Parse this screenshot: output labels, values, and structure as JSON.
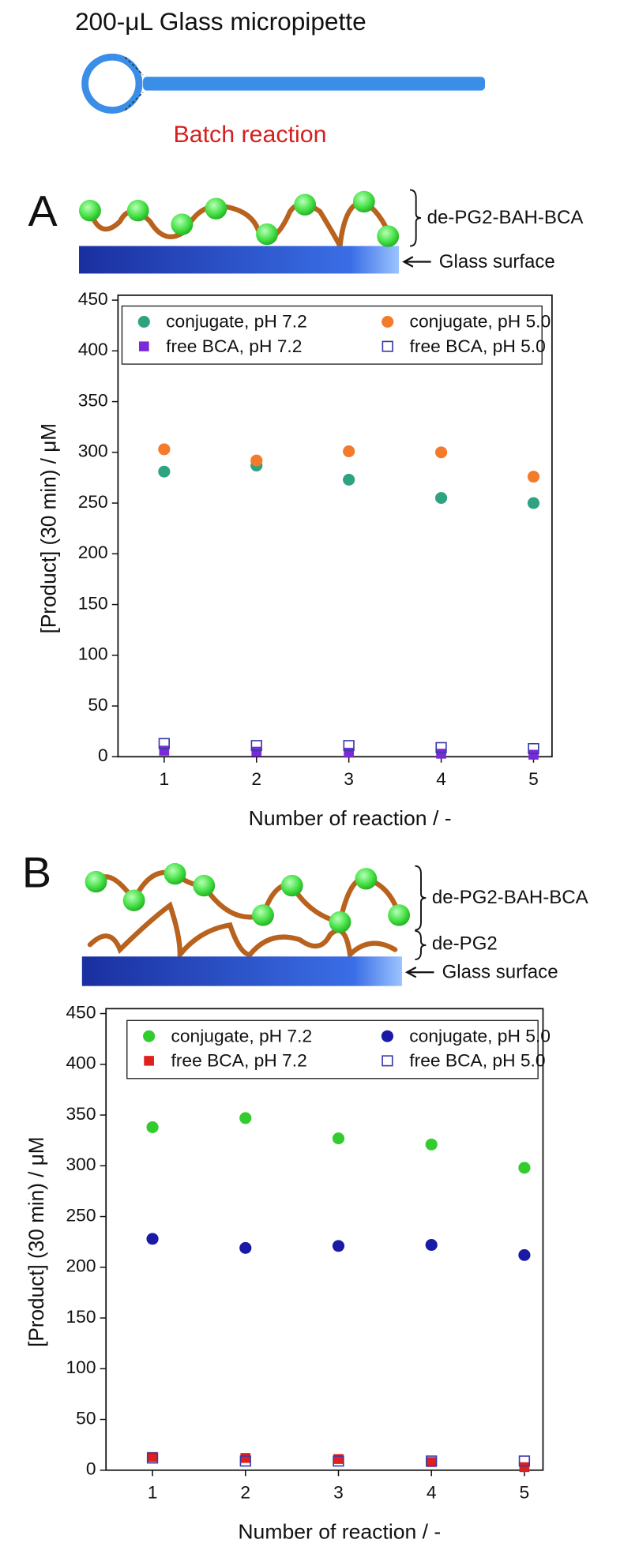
{
  "diagram": {
    "title": "200-μL Glass micropipette",
    "caption": "Batch reaction",
    "panels": [
      {
        "label": "A",
        "layers": [
          "de-PG2-BAH-BCA"
        ],
        "surface": "Glass surface"
      },
      {
        "label": "B",
        "layers": [
          "de-PG2-BAH-BCA",
          "de-PG2"
        ],
        "surface": "Glass surface"
      }
    ]
  },
  "chart_data": [
    {
      "type": "scatter",
      "x_label": "Number of reaction / -",
      "y_label": "[Product] (30 min) / μM",
      "xlim": [
        0.5,
        5.2
      ],
      "xticks": [
        1,
        2,
        3,
        4,
        5
      ],
      "ylim": [
        0,
        450
      ],
      "yticks": [
        0,
        50,
        100,
        150,
        200,
        250,
        300,
        350,
        400,
        450
      ],
      "legend": "top",
      "series": [
        {
          "name": "conjugate, pH 7.2",
          "color": "#2fa282",
          "marker": "circle",
          "x": [
            1,
            2,
            3,
            4,
            5
          ],
          "values": [
            281,
            287,
            273,
            255,
            250
          ]
        },
        {
          "name": "conjugate, pH 5.0",
          "color": "#f47b2c",
          "marker": "circle",
          "x": [
            1,
            2,
            3,
            4,
            5
          ],
          "values": [
            303,
            292,
            301,
            300,
            276
          ]
        },
        {
          "name": "free BCA, pH 7.2",
          "color": "#7a2ad8",
          "marker": "square",
          "x": [
            1,
            2,
            3,
            4,
            5
          ],
          "values": [
            6,
            5,
            4,
            3,
            2
          ]
        },
        {
          "name": "free BCA, pH 5.0",
          "color": "#3a3aa8",
          "marker": "open-square",
          "x": [
            1,
            2,
            3,
            4,
            5
          ],
          "values": [
            13,
            11,
            11,
            9,
            8
          ]
        }
      ]
    },
    {
      "type": "scatter",
      "x_label": "Number of reaction / -",
      "y_label": "[Product] (30 min) / μM",
      "xlim": [
        0.5,
        5.2
      ],
      "xticks": [
        1,
        2,
        3,
        4,
        5
      ],
      "ylim": [
        0,
        450
      ],
      "yticks": [
        0,
        50,
        100,
        150,
        200,
        250,
        300,
        350,
        400,
        450
      ],
      "legend": "top",
      "series": [
        {
          "name": "conjugate, pH 7.2",
          "color": "#33cc2e",
          "marker": "circle",
          "x": [
            1,
            2,
            3,
            4,
            5
          ],
          "values": [
            338,
            347,
            327,
            321,
            298
          ]
        },
        {
          "name": "conjugate, pH 5.0",
          "color": "#1a1aa6",
          "marker": "circle",
          "x": [
            1,
            2,
            3,
            4,
            5
          ],
          "values": [
            228,
            219,
            221,
            222,
            212
          ]
        },
        {
          "name": "free BCA, pH 7.2",
          "color": "#e0201c",
          "marker": "square",
          "x": [
            1,
            2,
            3,
            4,
            5
          ],
          "values": [
            13,
            12,
            11,
            8,
            3
          ]
        },
        {
          "name": "free BCA, pH 5.0",
          "color": "#3a3aa8",
          "marker": "open-square",
          "x": [
            1,
            2,
            3,
            4,
            5
          ],
          "values": [
            12,
            9,
            9,
            9,
            9
          ]
        }
      ]
    }
  ]
}
